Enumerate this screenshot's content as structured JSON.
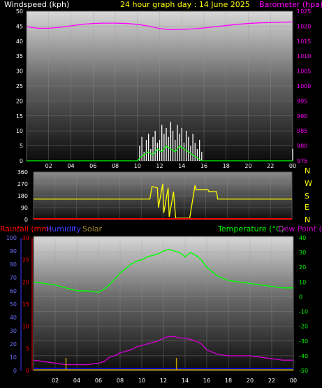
{
  "header": {
    "wind_title": "Windspeed (kph)",
    "main_title": "24 hour graph day : 14 June 2025",
    "baro_title": "Barometer (hpa)"
  },
  "lower_header": {
    "rain_title": "Rainfall (mm)",
    "hum_title": "Humidity",
    "solar_title": "Solar",
    "temp_title": "Temperature (°C)",
    "dew_title": "Dew Point (°C)"
  },
  "compass": [
    "N",
    "W",
    "S",
    "E",
    "N"
  ],
  "colors": {
    "wind_title": "#ffffff",
    "main_title": "#ffff00",
    "barometer": "#ff00ff",
    "wind_gust": "#ffffff",
    "wind_avg": "#00ff00",
    "direction": "#ffff00",
    "rain": "#ff0000",
    "humidity": "#0000ff",
    "solar": "#c0a000",
    "temperature": "#00ff00",
    "dewpoint": "#cc00cc",
    "axis_right_lower": "#00ff00"
  },
  "chart_data": [
    {
      "type": "line",
      "name": "wind-barometer",
      "x_tick_labels": [
        "02",
        "04",
        "06",
        "08",
        "10",
        "12",
        "14",
        "16",
        "18",
        "20",
        "22",
        "00"
      ],
      "left_ticks": [
        "0",
        "5",
        "10",
        "15",
        "20",
        "25",
        "30",
        "35",
        "40",
        "45",
        "50"
      ],
      "right_ticks": [
        "975",
        "980",
        "985",
        "990",
        "995",
        "1000",
        "1005",
        "1010",
        "1015",
        "1020",
        "1025"
      ],
      "ylim_left": [
        0,
        50
      ],
      "ylim_right": [
        975,
        1025
      ],
      "series": [
        {
          "name": "Barometer (hpa)",
          "axis": "right",
          "x": [
            0,
            1,
            2,
            3,
            4,
            5,
            6,
            7,
            8,
            9,
            10,
            11,
            12,
            13,
            14,
            15,
            16,
            17,
            18,
            19,
            20,
            21,
            22,
            23,
            24
          ],
          "values": [
            1019.8,
            1019.3,
            1019.3,
            1019.6,
            1020.1,
            1020.6,
            1020.9,
            1021.0,
            1021.0,
            1020.9,
            1020.6,
            1020.0,
            1019.2,
            1018.8,
            1018.9,
            1019.1,
            1019.4,
            1019.8,
            1020.2,
            1020.6,
            1020.9,
            1021.1,
            1021.2,
            1021.3,
            1021.4
          ]
        },
        {
          "name": "Wind gust",
          "axis": "left",
          "x": [
            0,
            5,
            10,
            10.2,
            10.4,
            10.6,
            10.8,
            11.0,
            11.2,
            11.4,
            11.6,
            11.8,
            12.0,
            12.2,
            12.4,
            12.6,
            12.8,
            13.0,
            13.2,
            13.4,
            13.6,
            13.8,
            14.0,
            14.2,
            14.4,
            14.6,
            14.8,
            15.0,
            15.2,
            15.4,
            15.6,
            15.8,
            16.0,
            20,
            23.8,
            24
          ],
          "values": [
            0,
            0,
            0,
            5,
            8,
            3,
            7,
            9,
            4,
            8,
            10,
            6,
            7,
            12,
            9,
            11,
            8,
            13,
            10,
            7,
            12,
            9,
            11,
            6,
            10,
            8,
            5,
            9,
            6,
            4,
            7,
            3,
            0,
            0,
            0,
            4
          ]
        },
        {
          "name": "Wind average",
          "axis": "left",
          "x": [
            0,
            5,
            10,
            10.2,
            10.6,
            11.0,
            11.4,
            11.8,
            12.2,
            12.6,
            13.0,
            13.4,
            13.8,
            14.2,
            14.6,
            15.0,
            15.4,
            15.8,
            16,
            24
          ],
          "values": [
            0,
            0,
            0,
            1,
            2,
            3,
            2,
            4,
            3,
            5,
            4,
            3,
            5,
            4,
            3,
            2,
            1,
            0,
            0,
            0
          ]
        }
      ]
    },
    {
      "type": "line",
      "name": "wind-direction",
      "x_tick_labels": [],
      "left_ticks": [
        "0",
        "90",
        "180",
        "270",
        "360"
      ],
      "ylim": [
        0,
        360
      ],
      "series": [
        {
          "name": "Wind direction",
          "x": [
            0,
            6,
            10.8,
            11.0,
            11.5,
            11.6,
            12.0,
            12.1,
            12.5,
            12.6,
            13.0,
            13.2,
            13.6,
            14.5,
            15.0,
            15.1,
            16.2,
            16.3,
            17.0,
            17.1,
            24
          ],
          "values": [
            155,
            155,
            155,
            250,
            240,
            90,
            270,
            50,
            240,
            20,
            210,
            10,
            10,
            10,
            260,
            225,
            225,
            210,
            210,
            155,
            155
          ]
        },
        {
          "name": "Direction zero baseline",
          "x": [
            0,
            24
          ],
          "values": [
            5,
            5
          ]
        }
      ]
    },
    {
      "type": "line",
      "name": "temperature-humidity",
      "x_tick_labels": [
        "02",
        "04",
        "06",
        "08",
        "10",
        "12",
        "14",
        "16",
        "18",
        "20",
        "22",
        "00"
      ],
      "left_ticks": [
        "0",
        "10",
        "20",
        "30",
        "40",
        "50",
        "60",
        "70",
        "80",
        "90",
        "100"
      ],
      "mid_ticks": [
        "0",
        "5",
        "10",
        "15",
        "20",
        "25",
        "30"
      ],
      "right_ticks": [
        "-50",
        "-40",
        "-30",
        "-20",
        "-10",
        "0",
        "10",
        "20",
        "30",
        "40"
      ],
      "ylim_left": [
        0,
        100
      ],
      "ylim_mid": [
        0,
        30
      ],
      "ylim_right": [
        -50,
        40
      ],
      "series": [
        {
          "name": "Temperature (°C)",
          "axis": "right",
          "x": [
            0,
            1,
            2,
            3,
            4,
            5,
            6,
            6.5,
            7,
            7.5,
            8,
            8.5,
            9,
            9.5,
            10,
            10.5,
            11,
            11.5,
            12,
            12.5,
            13,
            13.5,
            14,
            14.5,
            15,
            15.5,
            16,
            17,
            18,
            19,
            20,
            21,
            22,
            23,
            24
          ],
          "values": [
            10,
            9,
            8,
            6,
            4,
            4,
            3,
            5,
            8,
            12,
            16,
            19,
            22,
            24,
            25,
            27,
            28,
            29,
            31,
            32,
            31,
            30,
            27,
            30,
            28,
            25,
            20,
            14,
            11,
            10,
            9,
            8,
            7,
            6,
            6
          ]
        },
        {
          "name": "Dew Point (°C)",
          "axis": "right",
          "x": [
            0,
            1,
            2,
            3,
            4,
            5,
            6,
            6.5,
            7,
            7.5,
            8,
            8.5,
            9,
            9.5,
            10,
            10.5,
            11,
            11.5,
            12,
            12.5,
            13,
            13.5,
            14,
            14.5,
            15,
            15.5,
            16,
            17,
            18,
            19,
            20,
            21,
            22,
            23,
            24
          ],
          "values": [
            -43,
            -44,
            -45,
            -46,
            -46,
            -46,
            -45,
            -44,
            -41,
            -40,
            -38,
            -37,
            -36,
            -34,
            -33,
            -32,
            -31,
            -30,
            -28,
            -27,
            -27,
            -28,
            -28,
            -29,
            -30,
            -32,
            -36,
            -39,
            -40,
            -40,
            -40,
            -41,
            -42,
            -43,
            -43
          ]
        },
        {
          "name": "Rainfall (mm)",
          "axis": "mid",
          "x": [
            0,
            24
          ],
          "values": [
            0,
            0
          ]
        },
        {
          "name": "Solar",
          "axis": "left",
          "x": [
            3,
            3,
            13.2,
            13.2
          ],
          "values": [
            2,
            2,
            2,
            2
          ]
        }
      ]
    }
  ]
}
